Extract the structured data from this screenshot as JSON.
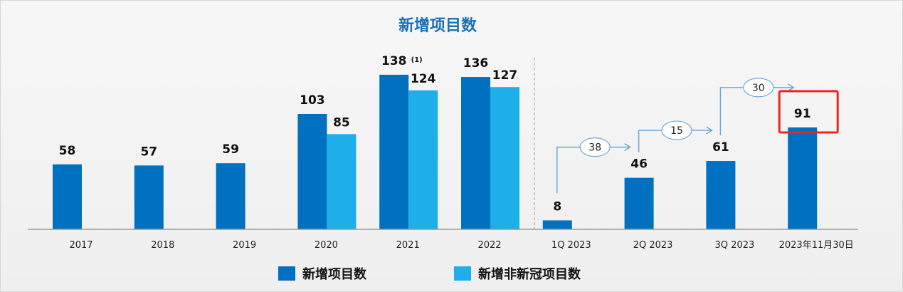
{
  "chart_data": {
    "type": "bar",
    "title": "新增项目数",
    "categories": [
      "2017",
      "2018",
      "2019",
      "2020",
      "2021",
      "2022",
      "1Q 2023",
      "2Q 2023",
      "3Q 2023",
      "2023年11月30日"
    ],
    "series": [
      {
        "name": "新增项目数",
        "color": "#0070c0",
        "values": [
          58,
          57,
          59,
          103,
          138,
          136,
          8,
          46,
          61,
          91
        ]
      },
      {
        "name": "新增非新冠项目数",
        "color": "#1eaeea",
        "values": [
          null,
          null,
          null,
          85,
          124,
          127,
          null,
          null,
          null,
          null
        ]
      }
    ],
    "footnotes": {
      "4": "(1)"
    },
    "increments": [
      {
        "from": 6,
        "to": 7,
        "label": "38"
      },
      {
        "from": 7,
        "to": 8,
        "label": "15"
      },
      {
        "from": 8,
        "to": 9,
        "label": "30"
      }
    ],
    "highlight_index": 9,
    "ylim": [
      0,
      150
    ],
    "xlabel": "",
    "ylabel": "",
    "legend": "bottom"
  }
}
